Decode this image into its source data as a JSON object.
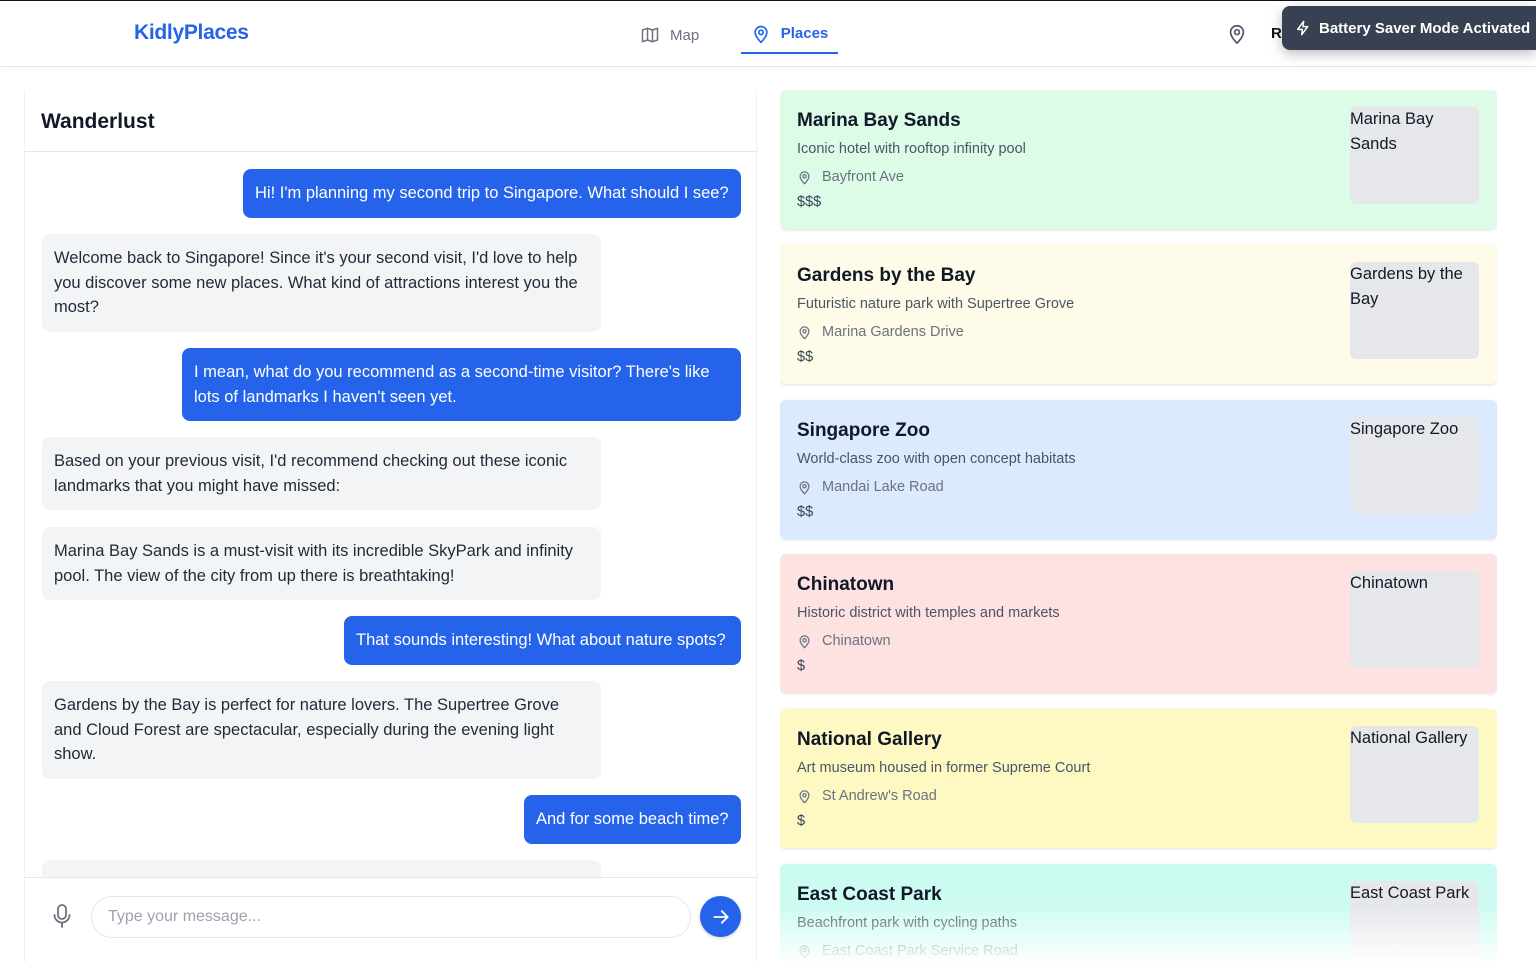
{
  "app": {
    "logo": "KidlyPlaces",
    "nav": [
      {
        "label": "Map",
        "icon": "map-icon"
      },
      {
        "label": "Places",
        "icon": "location-pin-icon",
        "active": true
      }
    ],
    "header_right_letter": "R",
    "toast": {
      "text": "Battery Saver Mode Activated",
      "icon": "lightning-icon"
    }
  },
  "chat": {
    "title": "Wanderlust",
    "messages": [
      {
        "role": "user",
        "text": "Hi! I'm planning my second trip to Singapore. What should I see?"
      },
      {
        "role": "bot",
        "text": "Welcome back to Singapore! Since it's your second visit, I'd love to help you discover some new places. What kind of attractions interest you the most?"
      },
      {
        "role": "user",
        "text": "I mean, what do you recommend as a second-time visitor? There's like lots of landmarks I haven't seen yet."
      },
      {
        "role": "bot",
        "text": "Based on your previous visit, I'd recommend checking out these iconic landmarks that you might have missed:"
      },
      {
        "role": "bot",
        "text": "Marina Bay Sands is a must-visit with its incredible SkyPark and infinity pool. The view of the city from up there is breathtaking!"
      },
      {
        "role": "user",
        "text": "That sounds interesting! What about nature spots?"
      },
      {
        "role": "bot",
        "text": "Gardens by the Bay is perfect for nature lovers. The Supertree Grove and Cloud Forest are spectacular, especially during the evening light show."
      },
      {
        "role": "user",
        "text": "And for some beach time?"
      }
    ],
    "input_placeholder": "Type your message...",
    "input_value": ""
  },
  "places": [
    {
      "name": "Marina Bay Sands",
      "description": "Iconic hotel with rooftop infinity pool",
      "address": "Bayfront Ave",
      "price": "$$$",
      "image_alt": "Marina Bay Sands",
      "color": "#dcfce7"
    },
    {
      "name": "Gardens by the Bay",
      "description": "Futuristic nature park with Supertree Grove",
      "address": "Marina Gardens Drive",
      "price": "$$",
      "image_alt": "Gardens by the Bay",
      "color": "#fefce8"
    },
    {
      "name": "Singapore Zoo",
      "description": "World-class zoo with open concept habitats",
      "address": "Mandai Lake Road",
      "price": "$$",
      "image_alt": "Singapore Zoo",
      "color": "#dbeafe"
    },
    {
      "name": "Chinatown",
      "description": "Historic district with temples and markets",
      "address": "Chinatown",
      "price": "$",
      "image_alt": "Chinatown",
      "color": "#fee2e2"
    },
    {
      "name": "National Gallery",
      "description": "Art museum housed in former Supreme Court",
      "address": "St Andrew's Road",
      "price": "$",
      "image_alt": "National Gallery",
      "color": "#fef9c3"
    },
    {
      "name": "East Coast Park",
      "description": "Beachfront park with cycling paths",
      "address": "East Coast Park Service Road",
      "price": "",
      "image_alt": "East Coast Park",
      "color": "#ccfbf1"
    }
  ]
}
